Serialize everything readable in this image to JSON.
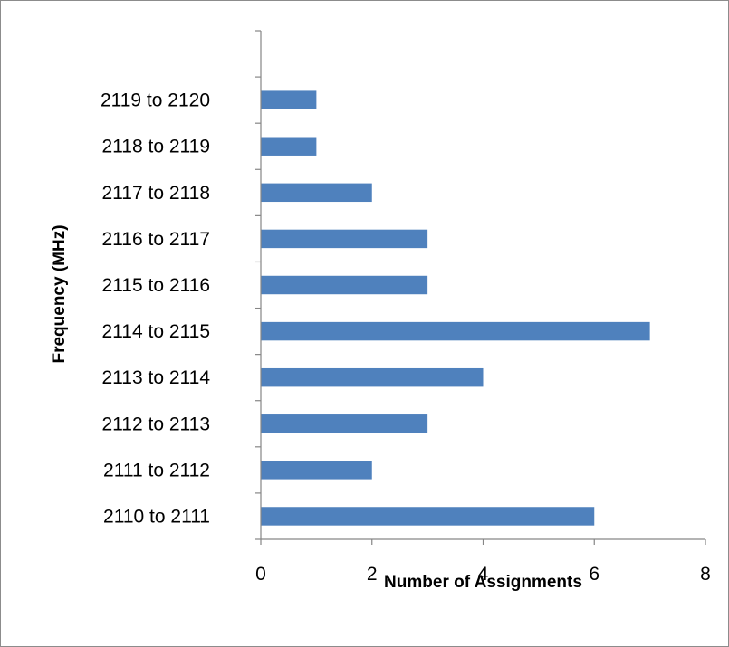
{
  "chart_data": {
    "type": "bar",
    "orientation": "horizontal",
    "title": "",
    "xlabel": "Number of Assignments",
    "ylabel": "Frequency (MHz)",
    "categories": [
      "2110 to 2111",
      "2111 to 2112",
      "2112 to 2113",
      "2113 to 2114",
      "2114 to 2115",
      "2115 to 2116",
      "2116 to 2117",
      "2117 to 2118",
      "2118 to 2119",
      "2119 to 2120"
    ],
    "values": [
      6,
      2,
      3,
      4,
      7,
      3,
      3,
      2,
      1,
      1
    ],
    "xlim": [
      0,
      8
    ],
    "xticks": [
      0,
      2,
      4,
      6,
      8
    ],
    "empty_top_slots": 1,
    "bar_color": "#4f81bd",
    "grid": false,
    "legend": "none"
  }
}
